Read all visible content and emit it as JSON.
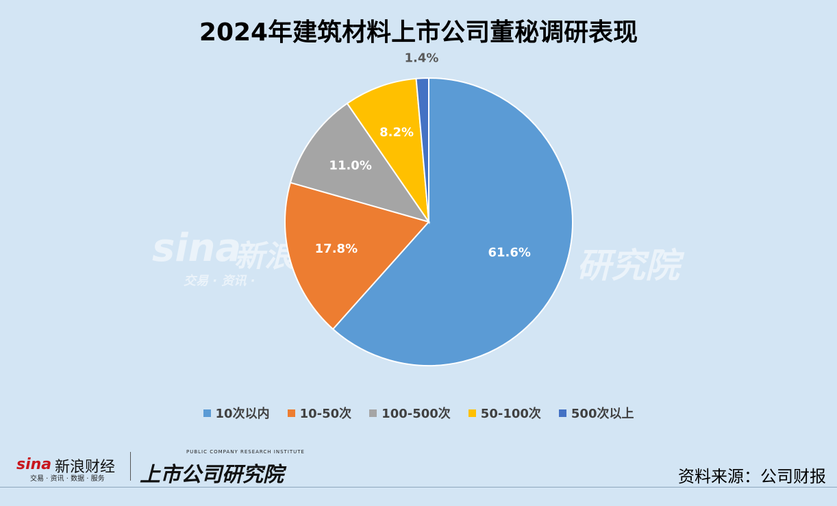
{
  "chart_data": {
    "type": "pie",
    "title": "2024年建筑材料上市公司董秘调研表现",
    "categories": [
      "10次以内",
      "10-50次",
      "100-500次",
      "50-100次",
      "500次以上"
    ],
    "values": [
      61.6,
      17.8,
      11.0,
      8.2,
      1.4
    ],
    "data_labels": [
      "61.6%",
      "17.8%",
      "11.0%",
      "8.2%",
      "1.4%"
    ],
    "colors": [
      "#5b9bd5",
      "#ed7d31",
      "#a5a5a5",
      "#ffc000",
      "#4472c4"
    ],
    "label_colors": [
      "#ffffff",
      "#ffffff",
      "#ffffff",
      "#ffffff",
      "#595959"
    ],
    "legend_position": "bottom",
    "start_angle": "12 o'clock, clockwise"
  },
  "source": "资料来源：公司财报",
  "watermark": {
    "sina_word": "sina",
    "sina_cn": "新浪",
    "sina_sub": "交易 · 资讯 ·",
    "research": "研究院"
  },
  "logos": {
    "sina_word": "sina",
    "sina_cn": "新浪财经",
    "sina_sub": "交易 · 资讯 · 数据 · 服务",
    "research_cn": "上市公司研究院",
    "research_en": "PUBLIC COMPANY RESEARCH INSTITUTE"
  }
}
